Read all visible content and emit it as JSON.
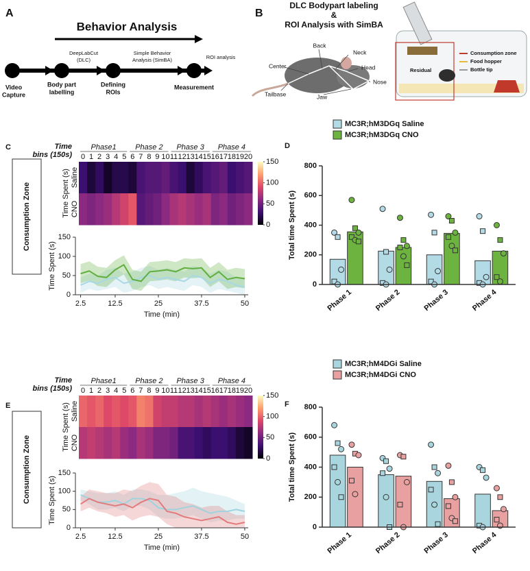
{
  "diagram_a": {
    "label": "A",
    "title": "Behavior Analysis",
    "tools": [
      [
        "DeepLabCut",
        "(DLC)"
      ],
      [
        "Simple Behavior",
        "Analysis (SimBA)"
      ],
      [
        "ROI analysis"
      ]
    ],
    "steps": [
      [
        "Video",
        "Capture"
      ],
      [
        "Body part",
        "labelling"
      ],
      [
        "Defining",
        "ROIs"
      ],
      [
        "Measurement"
      ]
    ]
  },
  "diagram_b": {
    "label": "B",
    "title_lines": [
      "DLC Bodypart labeling",
      "&",
      "ROI Analysis with SimBA"
    ],
    "bodyparts": [
      "Back",
      "Neck",
      "Center",
      "Head",
      "Nose",
      "Tailbase",
      "Jaw"
    ],
    "zones": [
      "Consumption  zone",
      "Food hopper",
      "Bottle tip"
    ],
    "residual": "Residual"
  },
  "chart_data": [
    {
      "type": "heatmap",
      "panel": "C",
      "zone_label": "Consumption Zone",
      "title_lines": [
        "Time",
        "bins (150s)"
      ],
      "phases": [
        "Phase1",
        "Phase  2",
        "Phase  3",
        "Phase  4"
      ],
      "columns": [
        0,
        1,
        2,
        3,
        4,
        5,
        6,
        7,
        8,
        9,
        10,
        11,
        12,
        13,
        14,
        15,
        16,
        17,
        18,
        19,
        20
      ],
      "rows": [
        "Saline",
        "CNO"
      ],
      "ylabel": "Time Spent (s)",
      "values": [
        [
          30,
          15,
          25,
          10,
          20,
          20,
          15,
          35,
          40,
          40,
          45,
          35,
          30,
          15,
          25,
          35,
          40,
          45,
          30,
          35,
          40
        ],
        [
          60,
          55,
          60,
          65,
          75,
          85,
          95,
          40,
          45,
          50,
          60,
          70,
          75,
          70,
          65,
          70,
          55,
          60,
          50,
          55,
          60
        ]
      ],
      "colorbar_lim": [
        0,
        150
      ],
      "colorbar_ticks": [
        0,
        50,
        100,
        150
      ]
    },
    {
      "type": "line",
      "x": [
        2.5,
        5,
        7.5,
        10,
        12.5,
        15,
        17.5,
        20,
        22.5,
        25,
        27.5,
        30,
        32.5,
        35,
        37.5,
        40,
        42.5,
        45,
        47.5,
        50
      ],
      "xlim": [
        1,
        51
      ],
      "xticks": [
        2.5,
        12.5,
        25,
        37.5,
        50
      ],
      "ylim": [
        0,
        150
      ],
      "yticks": [
        0,
        50,
        100,
        150
      ],
      "xlabel": "Time (min)",
      "ylabel": "Time Spent (s)",
      "series": [
        {
          "color": "#a8d8e6",
          "values": [
            25,
            35,
            30,
            40,
            45,
            30,
            35,
            45,
            50,
            40,
            45,
            40,
            35,
            50,
            45,
            30,
            40,
            35,
            25,
            20
          ],
          "lower": [
            5,
            15,
            10,
            15,
            20,
            5,
            10,
            20,
            25,
            15,
            20,
            15,
            10,
            25,
            20,
            5,
            15,
            10,
            5,
            0
          ],
          "upper": [
            45,
            55,
            50,
            65,
            70,
            55,
            60,
            70,
            75,
            65,
            70,
            65,
            60,
            75,
            70,
            55,
            65,
            60,
            45,
            40
          ]
        },
        {
          "color": "#5fae3e",
          "values": [
            55,
            62,
            48,
            45,
            65,
            78,
            40,
            35,
            60,
            62,
            65,
            60,
            70,
            68,
            70,
            45,
            60,
            40,
            45,
            42
          ],
          "lower": [
            30,
            37,
            23,
            20,
            40,
            53,
            15,
            10,
            35,
            37,
            40,
            35,
            45,
            43,
            45,
            20,
            35,
            15,
            20,
            17
          ],
          "upper": [
            80,
            87,
            73,
            70,
            90,
            103,
            65,
            60,
            85,
            87,
            90,
            85,
            95,
            93,
            95,
            70,
            85,
            65,
            70,
            67
          ]
        }
      ]
    },
    {
      "type": "bar",
      "panel": "D",
      "categories": [
        "Phase 1",
        "Phase 2",
        "Phase 3",
        "Phase 4"
      ],
      "ylabel": "Total time  Spent (s)",
      "ylim": [
        0,
        800
      ],
      "yticks": [
        0,
        200,
        400,
        600,
        800
      ],
      "legend": "top",
      "series": [
        {
          "name": "MC3R;hM3DGq Saline",
          "color": "#b3dbe6",
          "values": [
            170,
            225,
            200,
            160
          ],
          "points": [
            [
              350,
              320,
              100,
              20,
              0
            ],
            [
              510,
              220,
              100,
              10,
              0
            ],
            [
              470,
              350,
              90,
              20,
              0
            ],
            [
              460,
              360,
              50,
              10,
              0
            ]
          ]
        },
        {
          "name": "MC3R;hM3DGq CNO",
          "color": "#6db33f",
          "values": [
            355,
            250,
            345,
            225
          ],
          "points": [
            [
              570,
              380,
              350,
              320,
              300,
              290
            ],
            [
              450,
              300,
              260,
              250,
              190,
              130
            ],
            [
              460,
              430,
              350,
              320,
              260,
              230
            ],
            [
              400,
              300,
              210,
              50,
              20
            ]
          ]
        }
      ]
    },
    {
      "type": "heatmap",
      "panel": "E",
      "zone_label": "Consumption Zone",
      "title_lines": [
        "Time",
        "bins (150s)"
      ],
      "phases": [
        "Phase1",
        "Phase  2",
        "Phase  3",
        "Phase  4"
      ],
      "columns": [
        0,
        1,
        2,
        3,
        4,
        5,
        6,
        7,
        8,
        9,
        10,
        11,
        12,
        13,
        14,
        15,
        16,
        17,
        18,
        19,
        20
      ],
      "rows": [
        "Saline",
        "CNO"
      ],
      "ylabel": "Time Spent (s)",
      "values": [
        [
          100,
          95,
          100,
          90,
          95,
          90,
          95,
          110,
          105,
          85,
          80,
          80,
          75,
          75,
          70,
          75,
          70,
          65,
          70,
          65,
          60
        ],
        [
          75,
          80,
          75,
          70,
          75,
          65,
          60,
          70,
          65,
          55,
          55,
          50,
          35,
          35,
          30,
          25,
          30,
          30,
          25,
          15,
          10
        ]
      ],
      "colorbar_lim": [
        0,
        150
      ],
      "colorbar_ticks": [
        0,
        50,
        100,
        150
      ]
    },
    {
      "type": "line",
      "x": [
        2.5,
        5,
        7.5,
        10,
        12.5,
        15,
        17.5,
        20,
        22.5,
        25,
        27.5,
        30,
        32.5,
        35,
        37.5,
        40,
        42.5,
        45,
        47.5,
        50
      ],
      "xlim": [
        1,
        51
      ],
      "xticks": [
        2.5,
        12.5,
        25,
        37.5,
        50
      ],
      "ylim": [
        0,
        150
      ],
      "yticks": [
        0,
        50,
        100,
        150
      ],
      "xlabel": "Time (min)",
      "ylabel": "Time Spent (s)",
      "series": [
        {
          "color": "#9fd3dd",
          "values": [
            90,
            80,
            70,
            70,
            75,
            65,
            80,
            80,
            75,
            55,
            50,
            50,
            55,
            60,
            50,
            40,
            45,
            45,
            50,
            45
          ],
          "lower": [
            75,
            65,
            50,
            50,
            55,
            45,
            60,
            60,
            50,
            30,
            25,
            25,
            30,
            35,
            25,
            15,
            20,
            20,
            25,
            25
          ],
          "upper": [
            105,
            100,
            95,
            95,
            100,
            90,
            105,
            105,
            100,
            90,
            90,
            95,
            100,
            110,
            100,
            95,
            90,
            85,
            75,
            65
          ]
        },
        {
          "color": "#e27b7b",
          "values": [
            65,
            80,
            70,
            65,
            60,
            65,
            55,
            70,
            80,
            75,
            45,
            40,
            30,
            25,
            20,
            25,
            30,
            15,
            10,
            15
          ],
          "lower": [
            45,
            55,
            45,
            40,
            30,
            35,
            20,
            30,
            35,
            30,
            10,
            0,
            0,
            0,
            0,
            0,
            0,
            0,
            0,
            0
          ],
          "upper": [
            85,
            105,
            100,
            95,
            95,
            105,
            100,
            115,
            125,
            120,
            90,
            85,
            70,
            65,
            55,
            60,
            60,
            45,
            35,
            35
          ]
        }
      ]
    },
    {
      "type": "bar",
      "panel": "F",
      "categories": [
        "Phase 1",
        "Phase 2",
        "Phase 3",
        "Phase 4"
      ],
      "ylabel": "Total time  Spent (s)",
      "ylim": [
        0,
        800
      ],
      "yticks": [
        0,
        200,
        400,
        600,
        800
      ],
      "legend": "top",
      "series": [
        {
          "name": "MC3R;hM4DGi Saline",
          "color": "#a9d6de",
          "values": [
            480,
            350,
            305,
            220
          ],
          "points": [
            [
              680,
              560,
              520,
              400,
              300,
              200
            ],
            [
              460,
              440,
              390,
              360,
              200,
              0
            ],
            [
              550,
              400,
              360,
              250,
              150,
              20
            ],
            [
              400,
              380,
              330,
              10,
              0
            ]
          ]
        },
        {
          "name": "MC3R;hM4DGi CNO",
          "color": "#e8a1a0",
          "values": [
            400,
            340,
            190,
            110
          ],
          "points": [
            [
              550,
              490,
              480,
              310,
              220
            ],
            [
              480,
              470,
              300,
              150,
              0
            ],
            [
              410,
              300,
              200,
              140,
              60,
              40
            ],
            [
              260,
              200,
              120,
              50,
              10
            ]
          ]
        }
      ]
    }
  ]
}
